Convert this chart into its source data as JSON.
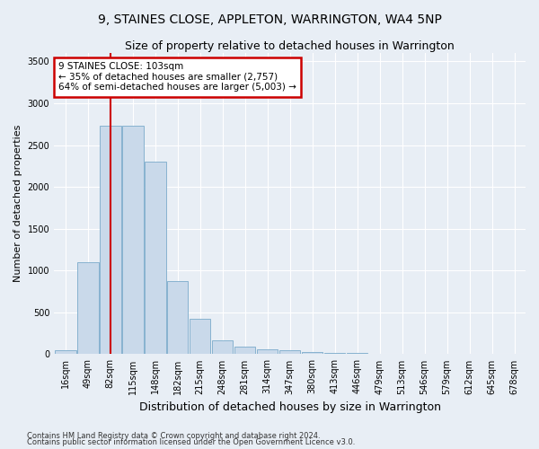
{
  "title": "9, STAINES CLOSE, APPLETON, WARRINGTON, WA4 5NP",
  "subtitle": "Size of property relative to detached houses in Warrington",
  "xlabel": "Distribution of detached houses by size in Warrington",
  "ylabel": "Number of detached properties",
  "footnote1": "Contains HM Land Registry data © Crown copyright and database right 2024.",
  "footnote2": "Contains public sector information licensed under the Open Government Licence v3.0.",
  "bin_labels": [
    "16sqm",
    "49sqm",
    "82sqm",
    "115sqm",
    "148sqm",
    "182sqm",
    "215sqm",
    "248sqm",
    "281sqm",
    "314sqm",
    "347sqm",
    "380sqm",
    "413sqm",
    "446sqm",
    "479sqm",
    "513sqm",
    "546sqm",
    "579sqm",
    "612sqm",
    "645sqm",
    "678sqm"
  ],
  "bar_values": [
    50,
    1100,
    2730,
    2730,
    2300,
    870,
    420,
    170,
    90,
    60,
    50,
    30,
    20,
    10,
    5,
    3,
    2,
    1,
    0,
    0,
    0
  ],
  "bar_color": "#c9d9ea",
  "bar_edge_color": "#7aaaca",
  "bar_width": 0.95,
  "ylim": [
    0,
    3600
  ],
  "yticks": [
    0,
    500,
    1000,
    1500,
    2000,
    2500,
    3000,
    3500
  ],
  "red_line_x": 2.0,
  "annotation_text": "9 STAINES CLOSE: 103sqm\n← 35% of detached houses are smaller (2,757)\n64% of semi-detached houses are larger (5,003) →",
  "annotation_box_facecolor": "#ffffff",
  "annotation_box_edge": "#cc0000",
  "bg_color": "#e8eef5",
  "grid_color": "#ffffff",
  "title_fontsize": 10,
  "subtitle_fontsize": 9,
  "ylabel_fontsize": 8,
  "xlabel_fontsize": 9,
  "tick_fontsize": 7,
  "annot_fontsize": 7.5,
  "footnote_fontsize": 6
}
